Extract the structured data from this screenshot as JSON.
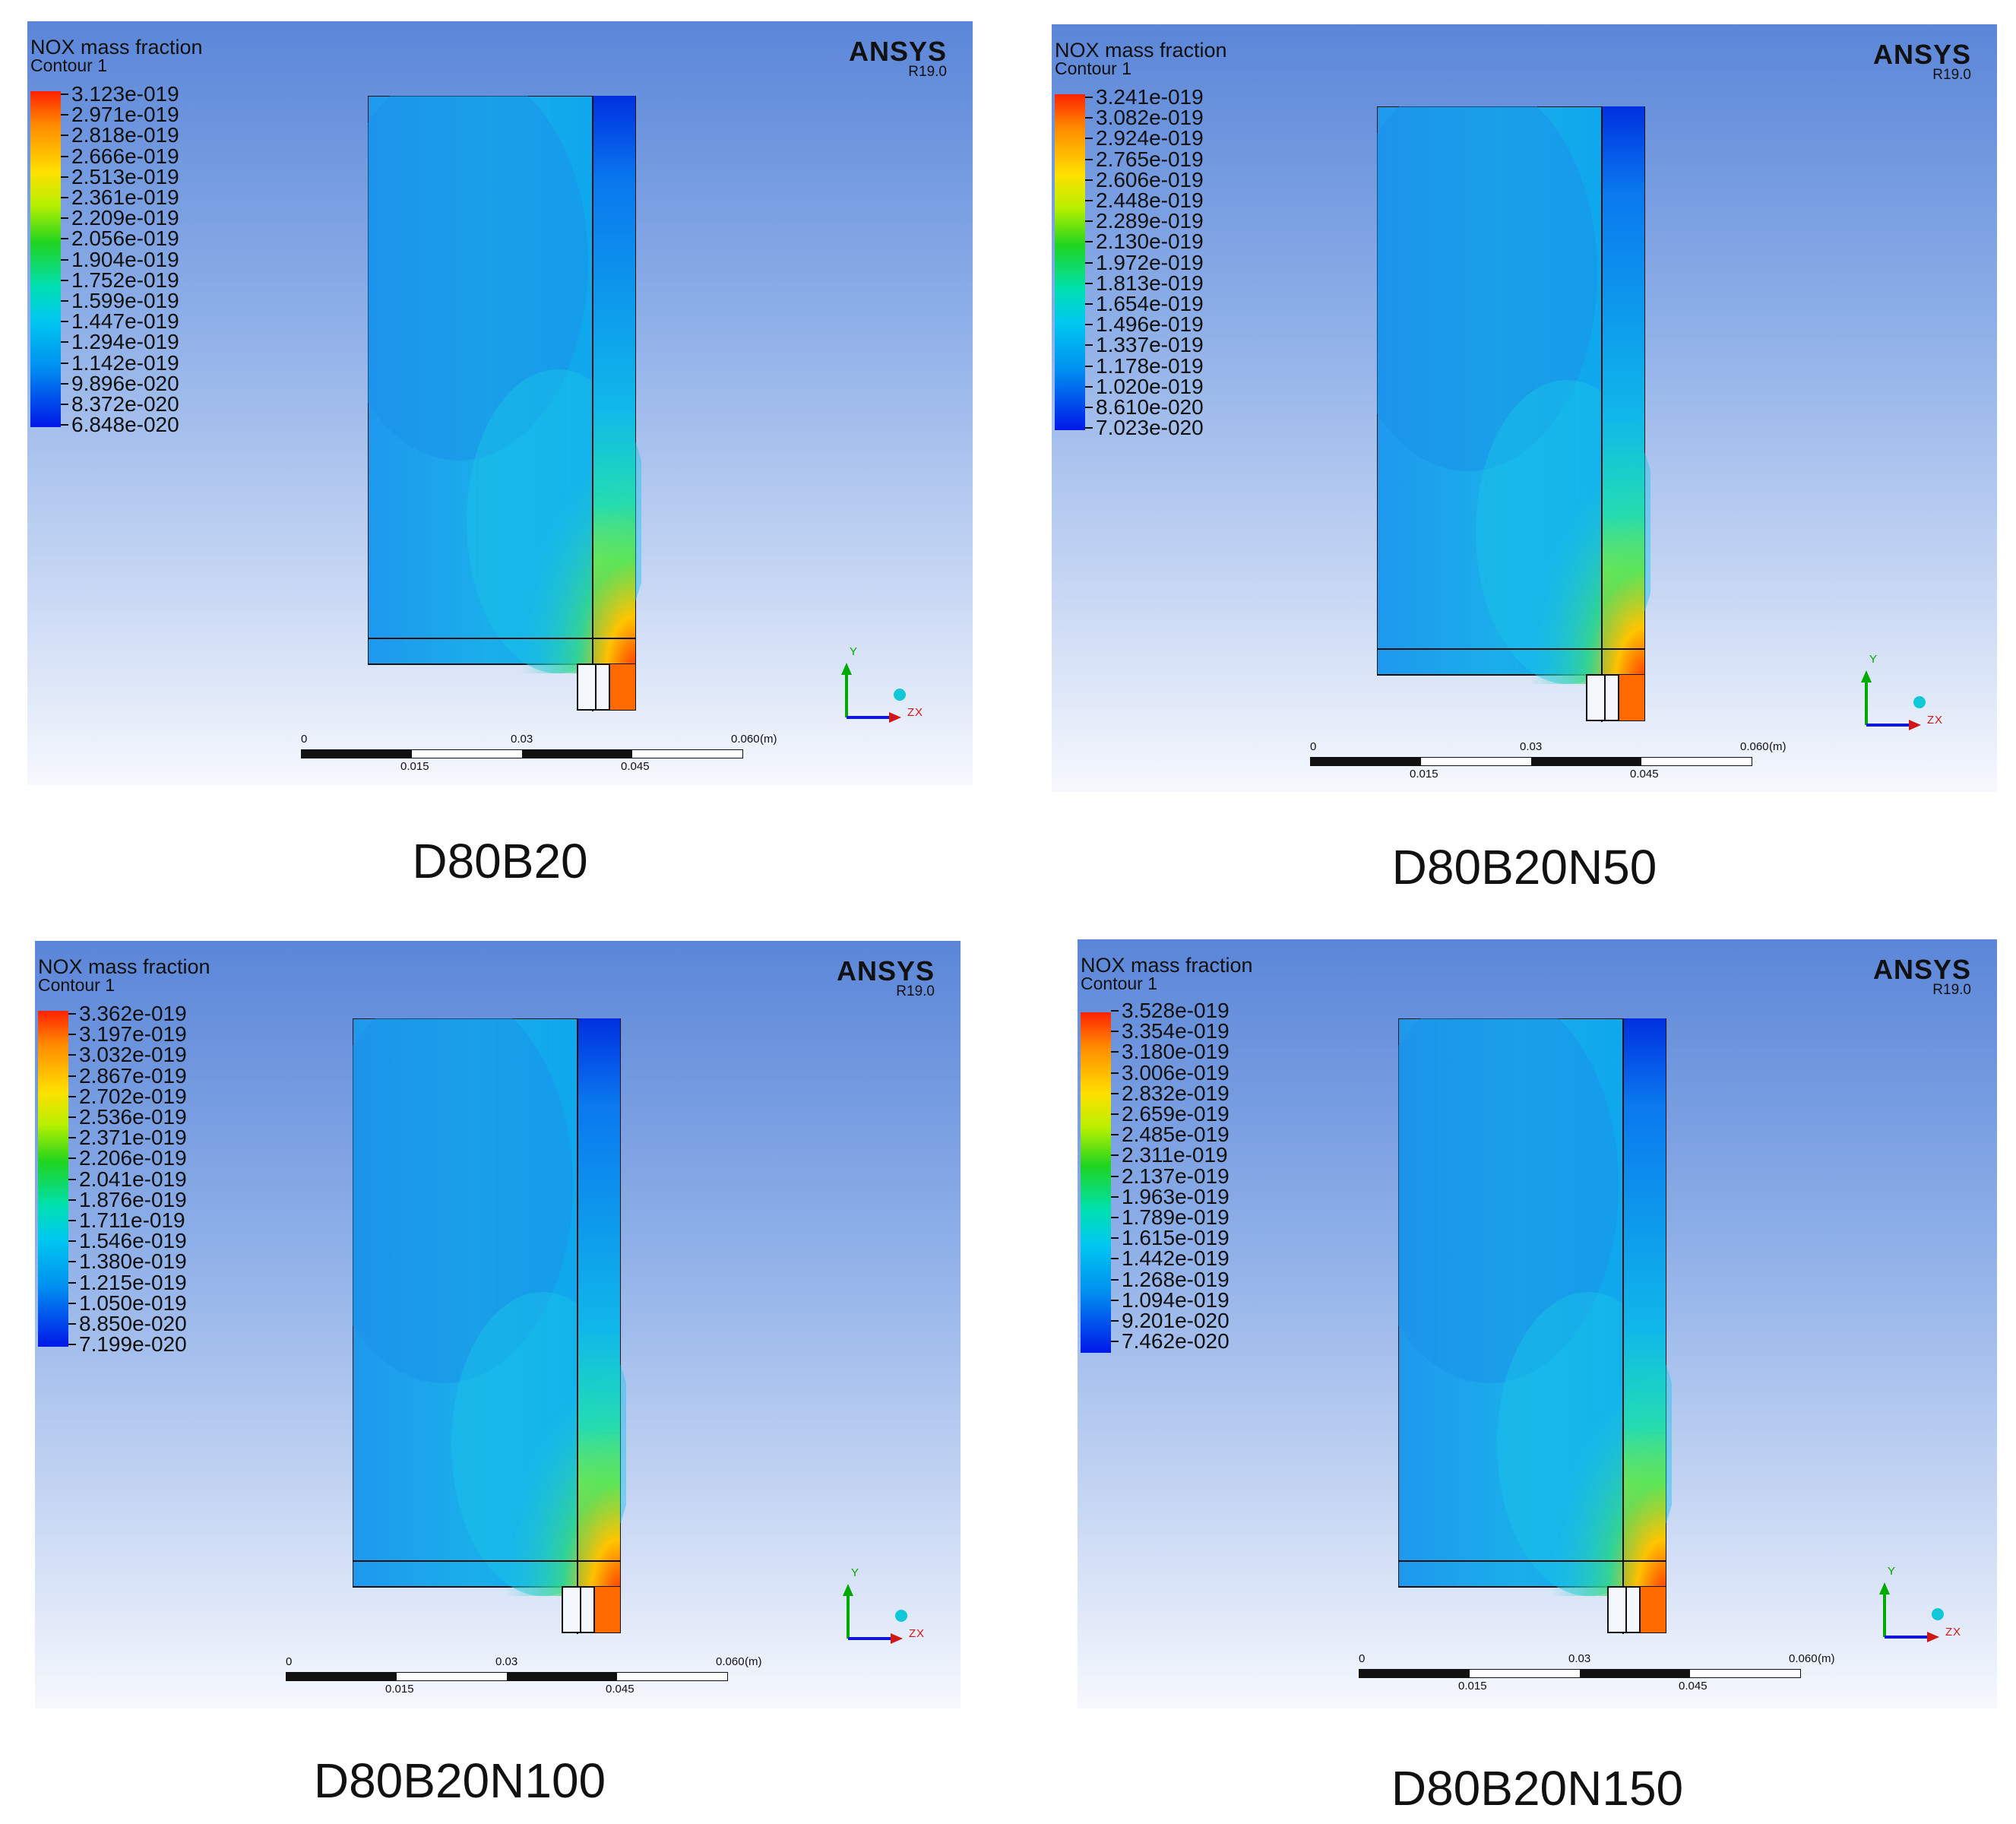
{
  "panels": [
    {
      "caption": "D80B20",
      "legend_title": "NOX mass fraction",
      "legend_subtitle": "Contour 1",
      "ticks": [
        "3.123e-019",
        "2.971e-019",
        "2.818e-019",
        "2.666e-019",
        "2.513e-019",
        "2.361e-019",
        "2.209e-019",
        "2.056e-019",
        "1.904e-019",
        "1.752e-019",
        "1.599e-019",
        "1.447e-019",
        "1.294e-019",
        "1.142e-019",
        "9.896e-020",
        "8.372e-020",
        "6.848e-020"
      ],
      "brand": "ANSYS",
      "version": "R19.0",
      "scale": {
        "l0": "0",
        "l1": "0.015",
        "l2": "0.03",
        "l3": "0.045",
        "l4": "0.060",
        "unit": "(m)"
      },
      "axis": {
        "y": "Y",
        "z": "Z",
        "x": "X"
      }
    },
    {
      "caption": "D80B20N50",
      "legend_title": "NOX mass fraction",
      "legend_subtitle": "Contour 1",
      "ticks": [
        "3.241e-019",
        "3.082e-019",
        "2.924e-019",
        "2.765e-019",
        "2.606e-019",
        "2.448e-019",
        "2.289e-019",
        "2.130e-019",
        "1.972e-019",
        "1.813e-019",
        "1.654e-019",
        "1.496e-019",
        "1.337e-019",
        "1.178e-019",
        "1.020e-019",
        "8.610e-020",
        "7.023e-020"
      ],
      "brand": "ANSYS",
      "version": "R19.0",
      "scale": {
        "l0": "0",
        "l1": "0.015",
        "l2": "0.03",
        "l3": "0.045",
        "l4": "0.060",
        "unit": "(m)"
      },
      "axis": {
        "y": "Y",
        "z": "Z",
        "x": "X"
      }
    },
    {
      "caption": "D80B20N100",
      "legend_title": "NOX mass fraction",
      "legend_subtitle": "Contour 1",
      "ticks": [
        "3.362e-019",
        "3.197e-019",
        "3.032e-019",
        "2.867e-019",
        "2.702e-019",
        "2.536e-019",
        "2.371e-019",
        "2.206e-019",
        "2.041e-019",
        "1.876e-019",
        "1.711e-019",
        "1.546e-019",
        "1.380e-019",
        "1.215e-019",
        "1.050e-019",
        "8.850e-020",
        "7.199e-020"
      ],
      "brand": "ANSYS",
      "version": "R19.0",
      "scale": {
        "l0": "0",
        "l1": "0.015",
        "l2": "0.03",
        "l3": "0.045",
        "l4": "0.060",
        "unit": "(m)"
      },
      "axis": {
        "y": "Y",
        "z": "Z",
        "x": "X"
      }
    },
    {
      "caption": "D80B20N150",
      "legend_title": "NOX mass fraction",
      "legend_subtitle": "Contour 1",
      "ticks": [
        "3.528e-019",
        "3.354e-019",
        "3.180e-019",
        "3.006e-019",
        "2.832e-019",
        "2.659e-019",
        "2.485e-019",
        "2.311e-019",
        "2.137e-019",
        "1.963e-019",
        "1.789e-019",
        "1.615e-019",
        "1.442e-019",
        "1.268e-019",
        "1.094e-019",
        "9.201e-020",
        "7.462e-020"
      ],
      "brand": "ANSYS",
      "version": "R19.0",
      "scale": {
        "l0": "0",
        "l1": "0.015",
        "l2": "0.03",
        "l3": "0.045",
        "l4": "0.060",
        "unit": "(m)"
      },
      "axis": {
        "y": "Y",
        "z": "Z",
        "x": "X"
      }
    }
  ]
}
